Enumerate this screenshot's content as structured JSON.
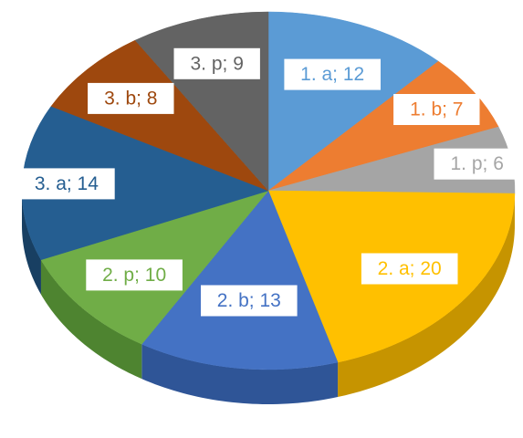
{
  "chart_data": {
    "type": "pie",
    "title": "",
    "slices": [
      {
        "label": "1. a; 12",
        "category": "1. a",
        "value": 12,
        "color": "#5B9BD5",
        "side": "#3A78AE"
      },
      {
        "label": "1. b; 7",
        "category": "1. b",
        "value": 7,
        "color": "#ED7D31",
        "side": "#B85E22"
      },
      {
        "label": "1. p; 6",
        "category": "1. p",
        "value": 6,
        "color": "#A5A5A5",
        "side": "#7E7E7E"
      },
      {
        "label": "2. a; 20",
        "category": "2. a",
        "value": 20,
        "color": "#FFC000",
        "side": "#C69400"
      },
      {
        "label": "2. b; 13",
        "category": "2. b",
        "value": 13,
        "color": "#4472C4",
        "side": "#2F5597"
      },
      {
        "label": "2. p; 10",
        "category": "2. p",
        "value": 10,
        "color": "#70AD47",
        "side": "#4E8430"
      },
      {
        "label": "3. a; 14",
        "category": "3. a",
        "value": 14,
        "color": "#255E91",
        "side": "#183F62"
      },
      {
        "label": "3. b; 8",
        "category": "3. b",
        "value": 8,
        "color": "#9E480E",
        "side": "#6F3209"
      },
      {
        "label": "3. p; 9",
        "category": "3. p",
        "value": 9,
        "color": "#636363",
        "side": "#444444"
      }
    ],
    "legend": "none",
    "data_labels": "inside-end"
  }
}
